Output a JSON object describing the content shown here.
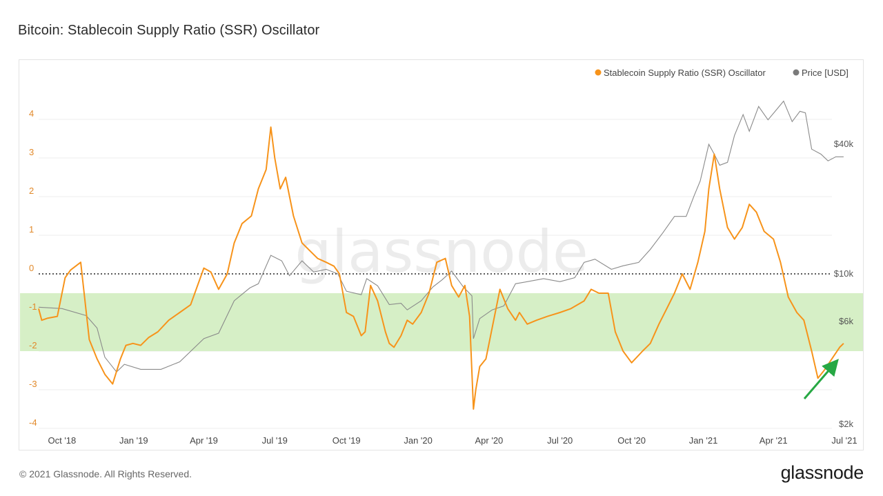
{
  "title": "Bitcoin: Stablecoin Supply Ratio (SSR) Oscillator",
  "footer": {
    "copyright": "© 2021 Glassnode. All Rights Reserved.",
    "logo": "glassnode"
  },
  "watermark": "glassnode",
  "colors": {
    "ssr": "#f7931a",
    "price": "#8a8a8a",
    "band": "#d6efc6",
    "arrow": "#27a844",
    "axis_left": "#e1892a",
    "axis_right": "#555555",
    "zero_line": "#222222"
  },
  "chart_data": {
    "type": "line",
    "title": "Bitcoin: Stablecoin Supply Ratio (SSR) Oscillator",
    "legend": {
      "position": "top-right",
      "entries": [
        "Stablecoin Supply Ratio (SSR) Oscillator",
        "Price [USD]"
      ]
    },
    "x_ticks": [
      "Oct '18",
      "Jan '19",
      "Apr '19",
      "Jul '19",
      "Oct '19",
      "Jan '20",
      "Apr '20",
      "Jul '20",
      "Oct '20",
      "Jan '21",
      "Apr '21",
      "Jul '21"
    ],
    "xlim": [
      "2018-09-01",
      "2021-07-01"
    ],
    "y_left": {
      "ticks": [
        "4",
        "3",
        "2",
        "1",
        "0",
        "-1",
        "-2",
        "-3",
        "-4"
      ],
      "ylim": [
        -4,
        4.5
      ]
    },
    "y_right": {
      "scale": "log",
      "ticks": [
        "$40k",
        "$10k",
        "$6k",
        "$2k"
      ]
    },
    "band": {
      "from": -2,
      "to": -0.5
    },
    "grid": true,
    "series": [
      {
        "name": "Stablecoin Supply Ratio (SSR) Oscillator",
        "axis": "left",
        "x": [
          "2018-09-01",
          "2018-09-05",
          "2018-09-12",
          "2018-09-25",
          "2018-10-05",
          "2018-10-12",
          "2018-10-25",
          "2018-11-05",
          "2018-11-15",
          "2018-11-25",
          "2018-12-05",
          "2018-12-15",
          "2018-12-22",
          "2018-12-31",
          "2019-01-10",
          "2019-01-20",
          "2019-02-01",
          "2019-02-15",
          "2019-03-01",
          "2019-03-15",
          "2019-04-01",
          "2019-04-10",
          "2019-04-20",
          "2019-05-01",
          "2019-05-10",
          "2019-05-20",
          "2019-06-01",
          "2019-06-10",
          "2019-06-20",
          "2019-06-26",
          "2019-07-01",
          "2019-07-08",
          "2019-07-15",
          "2019-07-25",
          "2019-08-05",
          "2019-08-15",
          "2019-08-25",
          "2019-09-05",
          "2019-09-15",
          "2019-09-22",
          "2019-10-01",
          "2019-10-10",
          "2019-10-20",
          "2019-10-25",
          "2019-11-01",
          "2019-11-10",
          "2019-11-20",
          "2019-11-25",
          "2019-12-01",
          "2019-12-10",
          "2019-12-18",
          "2019-12-25",
          "2020-01-05",
          "2020-01-15",
          "2020-01-25",
          "2020-02-05",
          "2020-02-13",
          "2020-02-22",
          "2020-03-01",
          "2020-03-07",
          "2020-03-12",
          "2020-03-15",
          "2020-03-20",
          "2020-03-28",
          "2020-04-05",
          "2020-04-15",
          "2020-04-25",
          "2020-05-05",
          "2020-05-10",
          "2020-05-20",
          "2020-06-01",
          "2020-06-15",
          "2020-07-01",
          "2020-07-15",
          "2020-08-01",
          "2020-08-10",
          "2020-08-20",
          "2020-09-01",
          "2020-09-10",
          "2020-09-20",
          "2020-10-01",
          "2020-10-15",
          "2020-10-25",
          "2020-11-05",
          "2020-11-15",
          "2020-11-25",
          "2020-12-05",
          "2020-12-15",
          "2020-12-25",
          "2021-01-03",
          "2021-01-08",
          "2021-01-15",
          "2021-01-22",
          "2021-02-01",
          "2021-02-10",
          "2021-02-20",
          "2021-03-01",
          "2021-03-10",
          "2021-03-20",
          "2021-04-01",
          "2021-04-10",
          "2021-04-20",
          "2021-05-01",
          "2021-05-10",
          "2021-05-20",
          "2021-05-28",
          "2021-06-05",
          "2021-06-15",
          "2021-06-25",
          "2021-06-30"
        ],
        "y": [
          -0.9,
          -1.2,
          -1.15,
          -1.1,
          -0.1,
          0.1,
          0.3,
          -1.7,
          -2.2,
          -2.6,
          -2.85,
          -2.2,
          -1.85,
          -1.8,
          -1.85,
          -1.65,
          -1.5,
          -1.2,
          -1.0,
          -0.8,
          0.15,
          0.05,
          -0.4,
          0.0,
          0.8,
          1.3,
          1.5,
          2.2,
          2.7,
          3.8,
          3.0,
          2.2,
          2.5,
          1.5,
          0.8,
          0.6,
          0.4,
          0.3,
          0.2,
          0.0,
          -1.0,
          -1.1,
          -1.6,
          -1.5,
          -0.3,
          -0.7,
          -1.5,
          -1.8,
          -1.9,
          -1.6,
          -1.2,
          -1.3,
          -1.0,
          -0.5,
          0.3,
          0.4,
          -0.3,
          -0.6,
          -0.3,
          -1.1,
          -3.5,
          -3.0,
          -2.4,
          -2.2,
          -1.4,
          -0.4,
          -0.9,
          -1.2,
          -1.0,
          -1.3,
          -1.2,
          -1.1,
          -1.0,
          -0.9,
          -0.7,
          -0.4,
          -0.5,
          -0.5,
          -1.5,
          -2.0,
          -2.3,
          -2.0,
          -1.8,
          -1.3,
          -0.9,
          -0.5,
          0.0,
          -0.4,
          0.3,
          1.1,
          2.2,
          3.1,
          2.2,
          1.2,
          0.9,
          1.2,
          1.8,
          1.6,
          1.1,
          0.9,
          0.3,
          -0.6,
          -1.0,
          -1.2,
          -2.0,
          -2.7,
          -2.5,
          -2.2,
          -1.9,
          -1.8
        ]
      },
      {
        "name": "Price [USD]",
        "axis": "right",
        "x": [
          "2018-09-01",
          "2018-10-01",
          "2018-11-01",
          "2018-11-15",
          "2018-11-25",
          "2018-12-10",
          "2018-12-20",
          "2019-01-10",
          "2019-02-05",
          "2019-03-01",
          "2019-04-01",
          "2019-04-20",
          "2019-05-10",
          "2019-05-30",
          "2019-06-10",
          "2019-06-26",
          "2019-07-10",
          "2019-07-20",
          "2019-08-05",
          "2019-08-20",
          "2019-09-05",
          "2019-09-20",
          "2019-10-01",
          "2019-10-20",
          "2019-10-27",
          "2019-11-10",
          "2019-11-25",
          "2019-12-10",
          "2019-12-18",
          "2020-01-05",
          "2020-01-20",
          "2020-02-01",
          "2020-02-13",
          "2020-02-28",
          "2020-03-10",
          "2020-03-12",
          "2020-03-20",
          "2020-04-05",
          "2020-04-20",
          "2020-05-05",
          "2020-05-20",
          "2020-06-10",
          "2020-07-01",
          "2020-07-20",
          "2020-08-01",
          "2020-08-15",
          "2020-09-05",
          "2020-09-20",
          "2020-10-10",
          "2020-10-25",
          "2020-11-10",
          "2020-11-25",
          "2020-12-10",
          "2020-12-20",
          "2020-12-28",
          "2021-01-08",
          "2021-01-15",
          "2021-01-22",
          "2021-02-01",
          "2021-02-10",
          "2021-02-21",
          "2021-03-01",
          "2021-03-13",
          "2021-03-25",
          "2021-04-05",
          "2021-04-14",
          "2021-04-25",
          "2021-05-05",
          "2021-05-12",
          "2021-05-20",
          "2021-06-01",
          "2021-06-10",
          "2021-06-20",
          "2021-06-30"
        ],
        "y": [
          7000,
          6900,
          6400,
          5600,
          4100,
          3500,
          3800,
          3600,
          3600,
          3900,
          5000,
          5300,
          7500,
          8600,
          9000,
          12200,
          11500,
          9800,
          11500,
          10200,
          10500,
          10000,
          8300,
          8000,
          9500,
          8800,
          7200,
          7300,
          6800,
          7500,
          8700,
          9400,
          10300,
          8700,
          7900,
          5000,
          6200,
          6800,
          7100,
          9000,
          9200,
          9500,
          9200,
          9600,
          11300,
          11700,
          10500,
          10900,
          11300,
          13000,
          15500,
          18500,
          18500,
          23000,
          27000,
          40000,
          36000,
          32000,
          33000,
          44000,
          55000,
          46000,
          60000,
          52000,
          58000,
          63500,
          51000,
          57000,
          56000,
          38000,
          36000,
          33500,
          35000,
          35000
        ]
      }
    ]
  }
}
